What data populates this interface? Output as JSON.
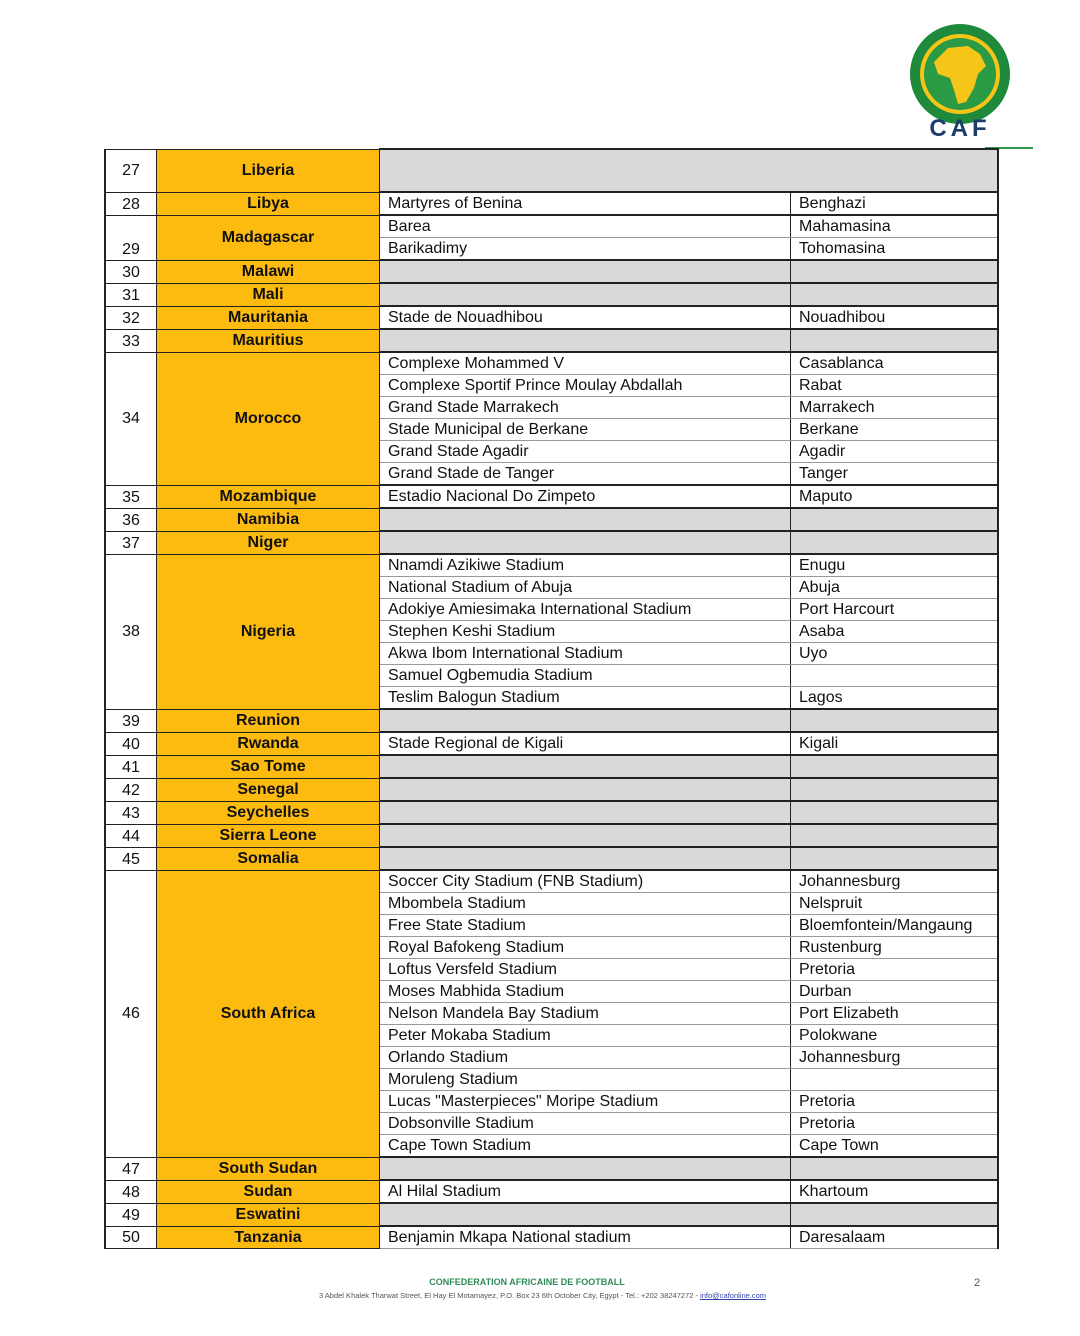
{
  "logo": {
    "text": "CAF",
    "colors": {
      "green": "#1f8a3b",
      "yellow": "#f5c518"
    }
  },
  "rows": [
    {
      "no": "27",
      "country": "Liberia",
      "stadiums": [],
      "tall": true
    },
    {
      "no": "28",
      "country": "Libya",
      "stadiums": [
        {
          "name": "Martyres of Benina",
          "city": "Benghazi"
        }
      ]
    },
    {
      "no": "29",
      "country": "Madagascar",
      "stadiums": [
        {
          "name": "Barea",
          "city": "Mahamasina"
        },
        {
          "name": "Barikadimy",
          "city": "Tohomasina"
        }
      ]
    },
    {
      "no": "30",
      "country": "Malawi",
      "stadiums": []
    },
    {
      "no": "31",
      "country": "Mali",
      "stadiums": []
    },
    {
      "no": "32",
      "country": "Mauritania",
      "stadiums": [
        {
          "name": "Stade de Nouadhibou",
          "city": "Nouadhibou"
        }
      ]
    },
    {
      "no": "33",
      "country": "Mauritius",
      "stadiums": []
    },
    {
      "no": "34",
      "country": "Morocco",
      "stadiums": [
        {
          "name": "Complexe Mohammed V",
          "city": "Casablanca"
        },
        {
          "name": "Complexe Sportif Prince Moulay Abdallah",
          "city": "Rabat"
        },
        {
          "name": "Grand Stade Marrakech",
          "city": "Marrakech"
        },
        {
          "name": "Stade Municipal de Berkane",
          "city": "Berkane"
        },
        {
          "name": "Grand Stade Agadir",
          "city": "Agadir"
        },
        {
          "name": "Grand Stade de Tanger",
          "city": "Tanger"
        }
      ]
    },
    {
      "no": "35",
      "country": "Mozambique",
      "stadiums": [
        {
          "name": "Estadio Nacional Do Zimpeto",
          "city": "Maputo"
        }
      ]
    },
    {
      "no": "36",
      "country": "Namibia",
      "stadiums": []
    },
    {
      "no": "37",
      "country": "Niger",
      "stadiums": []
    },
    {
      "no": "38",
      "country": "Nigeria",
      "stadiums": [
        {
          "name": "Nnamdi Azikiwe Stadium",
          "city": "Enugu"
        },
        {
          "name": "National Stadium of Abuja",
          "city": "Abuja"
        },
        {
          "name": "Adokiye Amiesimaka International Stadium",
          "city": "Port Harcourt"
        },
        {
          "name": "Stephen Keshi Stadium",
          "city": "Asaba"
        },
        {
          "name": "Akwa Ibom International Stadium",
          "city": "Uyo"
        },
        {
          "name": "Samuel Ogbemudia Stadium",
          "city": ""
        },
        {
          "name": "Teslim Balogun Stadium",
          "city": "Lagos"
        }
      ]
    },
    {
      "no": "39",
      "country": "Reunion",
      "stadiums": []
    },
    {
      "no": "40",
      "country": "Rwanda",
      "stadiums": [
        {
          "name": "Stade Regional de Kigali",
          "city": "Kigali"
        }
      ]
    },
    {
      "no": "41",
      "country": "Sao Tome",
      "stadiums": []
    },
    {
      "no": "42",
      "country": "Senegal",
      "stadiums": []
    },
    {
      "no": "43",
      "country": "Seychelles",
      "stadiums": []
    },
    {
      "no": "44",
      "country": "Sierra Leone",
      "stadiums": []
    },
    {
      "no": "45",
      "country": "Somalia",
      "stadiums": []
    },
    {
      "no": "46",
      "country": "South Africa",
      "stadiums": [
        {
          "name": "Soccer City Stadium (FNB Stadium)",
          "city": "Johannesburg"
        },
        {
          "name": "Mbombela Stadium",
          "city": "Nelspruit"
        },
        {
          "name": "Free State Stadium",
          "city": "Bloemfontein/Mangaung"
        },
        {
          "name": "Royal Bafokeng Stadium",
          "city": "Rustenburg"
        },
        {
          "name": "Loftus Versfeld Stadium",
          "city": "Pretoria"
        },
        {
          "name": "Moses Mabhida Stadium",
          "city": "Durban"
        },
        {
          "name": "Nelson Mandela Bay Stadium",
          "city": "Port Elizabeth"
        },
        {
          "name": "Peter Mokaba Stadium",
          "city": "Polokwane"
        },
        {
          "name": "Orlando Stadium",
          "city": "Johannesburg"
        },
        {
          "name": "Moruleng Stadium",
          "city": ""
        },
        {
          "name": "Lucas \"Masterpieces\" Moripe Stadium",
          "city": "Pretoria"
        },
        {
          "name": "Dobsonville Stadium",
          "city": "Pretoria"
        },
        {
          "name": "Cape Town Stadium",
          "city": "Cape Town"
        }
      ]
    },
    {
      "no": "47",
      "country": "South Sudan",
      "stadiums": []
    },
    {
      "no": "48",
      "country": "Sudan",
      "stadiums": [
        {
          "name": "Al Hilal Stadium",
          "city": "Khartoum"
        }
      ]
    },
    {
      "no": "49",
      "country": "Eswatini",
      "stadiums": []
    },
    {
      "no": "50",
      "country": "Tanzania",
      "stadiums": [
        {
          "name": "Benjamin Mkapa National stadium",
          "city": "Daresalaam"
        }
      ]
    }
  ],
  "footer": {
    "title": "CONFEDERATION AFRICAINE DE FOOTBALL",
    "address": "3 Abdel Khalek Tharwat Street, El Hay El Motamayez, P.O. Box 23 6th October City, Egypt - Tel.: +202 38247272 - ",
    "email": "info@cafonline.com",
    "page_number": "2"
  }
}
